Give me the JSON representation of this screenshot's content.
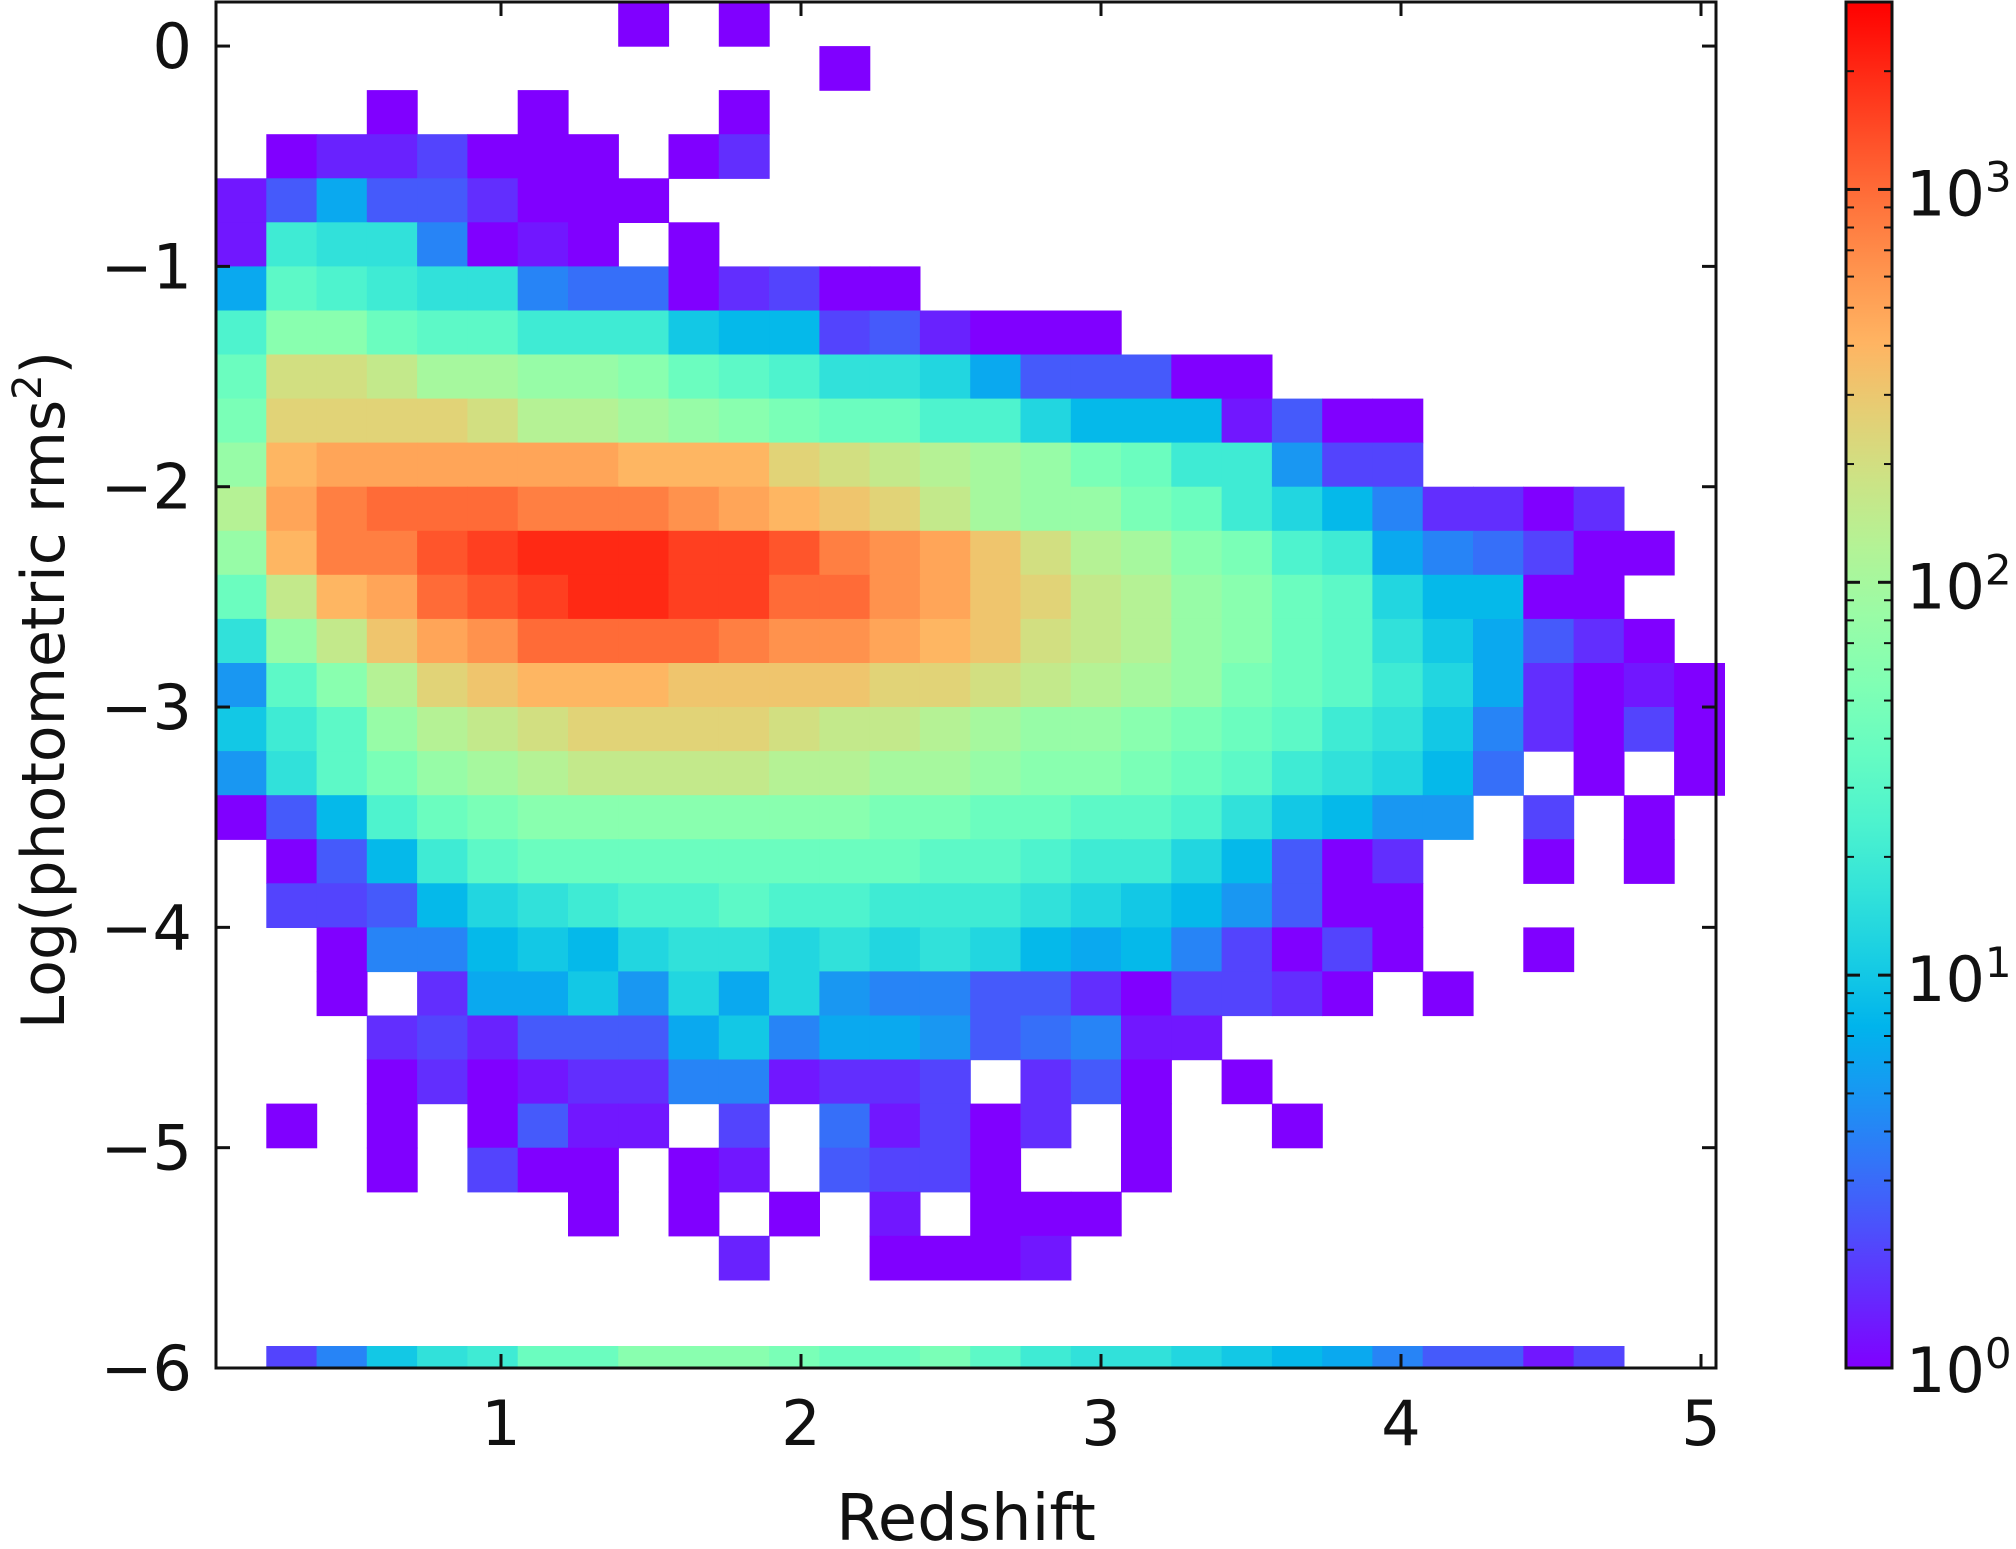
{
  "chart_data": {
    "type": "heatmap",
    "title": "",
    "xlabel": "Redshift",
    "ylabel": "Log(photometric rms",
    "ylabel_superscript": "2",
    "ylabel_close": ")",
    "xlim": [
      0.05,
      5.05
    ],
    "ylim": [
      -6,
      0.2
    ],
    "xticks": [
      1,
      2,
      3,
      4,
      5
    ],
    "yticks": [
      0,
      -1,
      -2,
      -3,
      -4,
      -5,
      -6
    ],
    "xtick_labels": [
      "1",
      "2",
      "3",
      "4",
      "5"
    ],
    "ytick_labels": [
      "0",
      "−1",
      "−2",
      "−3",
      "−4",
      "−5",
      "−6"
    ],
    "colorbar": {
      "scale": "log",
      "range": [
        1,
        3000
      ],
      "colormap": "rainbow",
      "label": "",
      "tick_base": "10",
      "tick_exponents": [
        "0",
        "1",
        "2",
        "3"
      ]
    },
    "grid": false,
    "legend": "none",
    "bin_layout": {
      "x_start": 0.05,
      "x_bin_width": 0.1676,
      "y_start": 0.2,
      "y_bin_height": -0.2,
      "value_encoding": "log10(count) per bin; null = empty bin"
    },
    "rows": [
      [
        null,
        null,
        null,
        null,
        null,
        null,
        null,
        null,
        0,
        null,
        0,
        null,
        null,
        null,
        null,
        null,
        null,
        null,
        null,
        null,
        null,
        null,
        null,
        null,
        null,
        null,
        null,
        null,
        null,
        null
      ],
      [
        null,
        null,
        null,
        null,
        null,
        null,
        null,
        null,
        null,
        null,
        null,
        null,
        0,
        null,
        null,
        null,
        null,
        null,
        null,
        null,
        null,
        null,
        null,
        null,
        null,
        null,
        null,
        null,
        null,
        null
      ],
      [
        null,
        null,
        null,
        0,
        null,
        null,
        0,
        null,
        null,
        null,
        0,
        null,
        null,
        null,
        null,
        null,
        null,
        null,
        null,
        null,
        null,
        null,
        null,
        null,
        null,
        null,
        null,
        null,
        null,
        null
      ],
      [
        null,
        0,
        0.15,
        0.15,
        0.3,
        0,
        0,
        0,
        null,
        0,
        0.2,
        null,
        null,
        null,
        null,
        null,
        null,
        null,
        null,
        null,
        null,
        null,
        null,
        null,
        null,
        null,
        null,
        null,
        null,
        null
      ],
      [
        0.1,
        0.4,
        0.8,
        0.4,
        0.4,
        0.2,
        0,
        0,
        0,
        null,
        null,
        null,
        null,
        null,
        null,
        null,
        null,
        null,
        null,
        null,
        null,
        null,
        null,
        null,
        null,
        null,
        null,
        null,
        null,
        null
      ],
      [
        0.1,
        1.3,
        1.2,
        1.2,
        0.6,
        0,
        0.1,
        0,
        null,
        0,
        null,
        null,
        null,
        null,
        null,
        null,
        null,
        null,
        null,
        null,
        null,
        null,
        null,
        null,
        null,
        null,
        null,
        null,
        null,
        null
      ],
      [
        0.8,
        1.5,
        1.4,
        1.3,
        1.2,
        1.2,
        0.6,
        0.5,
        0.5,
        0,
        0.2,
        0.3,
        0,
        0,
        null,
        null,
        null,
        null,
        null,
        null,
        null,
        null,
        null,
        null,
        null,
        null,
        null,
        null,
        null,
        null
      ],
      [
        1.4,
        1.8,
        1.8,
        1.6,
        1.5,
        1.5,
        1.3,
        1.3,
        1.3,
        1.0,
        0.9,
        0.9,
        0.3,
        0.4,
        0.15,
        0,
        0,
        0,
        null,
        null,
        null,
        null,
        null,
        null,
        null,
        null,
        null,
        null,
        null,
        null
      ],
      [
        1.6,
        2.3,
        2.3,
        2.2,
        2.0,
        2.0,
        1.9,
        1.9,
        1.8,
        1.6,
        1.5,
        1.4,
        1.2,
        1.2,
        1.1,
        0.8,
        0.4,
        0.4,
        0.4,
        0,
        0,
        null,
        null,
        null,
        null,
        null,
        null,
        null,
        null,
        null
      ],
      [
        1.7,
        2.4,
        2.4,
        2.4,
        2.4,
        2.3,
        2.1,
        2.1,
        2.0,
        1.9,
        1.8,
        1.7,
        1.6,
        1.6,
        1.4,
        1.4,
        1.1,
        0.9,
        0.9,
        0.9,
        0.1,
        0.4,
        0,
        0,
        null,
        null,
        null,
        null,
        null,
        null
      ],
      [
        1.9,
        2.6,
        2.7,
        2.7,
        2.7,
        2.7,
        2.7,
        2.7,
        2.6,
        2.6,
        2.6,
        2.4,
        2.3,
        2.2,
        2.1,
        2.0,
        1.9,
        1.7,
        1.6,
        1.3,
        1.3,
        0.7,
        0.3,
        0.3,
        null,
        null,
        null,
        null,
        null,
        null
      ],
      [
        2.1,
        2.7,
        2.9,
        3.0,
        3.0,
        3.0,
        2.9,
        2.9,
        2.9,
        2.8,
        2.7,
        2.6,
        2.5,
        2.4,
        2.2,
        2.0,
        1.9,
        1.9,
        1.7,
        1.6,
        1.3,
        1.1,
        0.9,
        0.6,
        0.2,
        0.2,
        0,
        0.2,
        null,
        null
      ],
      [
        1.9,
        2.6,
        2.9,
        2.9,
        3.1,
        3.2,
        3.3,
        3.3,
        3.3,
        3.2,
        3.2,
        3.1,
        2.9,
        2.8,
        2.7,
        2.5,
        2.3,
        2.1,
        2.0,
        1.8,
        1.7,
        1.4,
        1.3,
        0.8,
        0.6,
        0.5,
        0.3,
        0,
        0,
        null
      ],
      [
        1.6,
        2.2,
        2.6,
        2.7,
        3.0,
        3.1,
        3.2,
        3.3,
        3.3,
        3.2,
        3.2,
        3.0,
        3.0,
        2.8,
        2.7,
        2.5,
        2.4,
        2.2,
        2.1,
        1.9,
        1.8,
        1.6,
        1.5,
        1.1,
        0.9,
        0.9,
        0,
        0,
        null,
        null
      ],
      [
        1.2,
        1.9,
        2.2,
        2.5,
        2.7,
        2.8,
        3.0,
        3.0,
        3.0,
        3.0,
        2.9,
        2.8,
        2.8,
        2.7,
        2.6,
        2.5,
        2.3,
        2.2,
        2.1,
        1.9,
        1.8,
        1.6,
        1.5,
        1.2,
        1.0,
        0.8,
        0.4,
        0.2,
        0,
        null
      ],
      [
        0.7,
        1.5,
        1.8,
        2.1,
        2.4,
        2.5,
        2.6,
        2.6,
        2.6,
        2.5,
        2.5,
        2.5,
        2.5,
        2.4,
        2.4,
        2.3,
        2.2,
        2.1,
        2.0,
        1.9,
        1.7,
        1.6,
        1.5,
        1.3,
        1.1,
        0.8,
        0.2,
        0,
        0.1,
        0
      ],
      [
        1.0,
        1.3,
        1.5,
        1.9,
        2.1,
        2.2,
        2.3,
        2.4,
        2.4,
        2.4,
        2.4,
        2.3,
        2.2,
        2.2,
        2.1,
        2.0,
        1.9,
        1.9,
        1.8,
        1.7,
        1.6,
        1.5,
        1.3,
        1.2,
        1.0,
        0.6,
        0.2,
        0,
        0.3,
        0
      ],
      [
        0.7,
        1.2,
        1.5,
        1.7,
        1.9,
        2.0,
        2.1,
        2.2,
        2.2,
        2.2,
        2.2,
        2.1,
        2.1,
        2.0,
        2.0,
        1.9,
        1.8,
        1.8,
        1.7,
        1.6,
        1.5,
        1.3,
        1.2,
        1.1,
        0.9,
        0.5,
        null,
        0,
        null,
        0
      ],
      [
        0,
        0.4,
        0.9,
        1.4,
        1.6,
        1.7,
        1.8,
        1.8,
        1.8,
        1.8,
        1.8,
        1.8,
        1.8,
        1.7,
        1.7,
        1.6,
        1.6,
        1.5,
        1.5,
        1.4,
        1.2,
        1.0,
        0.9,
        0.7,
        0.7,
        null,
        0.3,
        null,
        0,
        null
      ],
      [
        null,
        0,
        0.4,
        0.9,
        1.3,
        1.5,
        1.6,
        1.6,
        1.6,
        1.6,
        1.6,
        1.6,
        1.6,
        1.6,
        1.5,
        1.5,
        1.4,
        1.3,
        1.3,
        1.1,
        0.9,
        0.4,
        0,
        0.2,
        null,
        null,
        0,
        null,
        0,
        null
      ],
      [
        null,
        0.3,
        0.3,
        0.4,
        0.9,
        1.1,
        1.2,
        1.3,
        1.4,
        1.4,
        1.5,
        1.4,
        1.4,
        1.3,
        1.3,
        1.3,
        1.2,
        1.1,
        1.0,
        0.9,
        0.7,
        0.4,
        0,
        0,
        null,
        null,
        null,
        null,
        null,
        null
      ],
      [
        null,
        null,
        0,
        0.6,
        0.6,
        0.9,
        1.0,
        0.9,
        1.1,
        1.2,
        1.2,
        1.1,
        1.2,
        1.1,
        1.2,
        1.1,
        0.9,
        0.8,
        0.9,
        0.6,
        0.3,
        0,
        0.3,
        0,
        null,
        null,
        0,
        null,
        null,
        null
      ],
      [
        null,
        null,
        0,
        null,
        0.2,
        0.8,
        0.8,
        1.0,
        0.7,
        1.1,
        0.8,
        1.1,
        0.7,
        0.6,
        0.6,
        0.4,
        0.4,
        0.2,
        0,
        0.3,
        0.3,
        0.2,
        0,
        null,
        0,
        null,
        null,
        null,
        null,
        null
      ],
      [
        null,
        null,
        null,
        0.2,
        0.3,
        0.15,
        0.4,
        0.4,
        0.4,
        0.8,
        1.0,
        0.6,
        0.8,
        0.8,
        0.7,
        0.4,
        0.5,
        0.6,
        0.1,
        0.1,
        null,
        null,
        null,
        null,
        null,
        null,
        null,
        null,
        null,
        null
      ],
      [
        null,
        null,
        null,
        0,
        0.2,
        0,
        0.1,
        0.2,
        0.2,
        0.6,
        0.6,
        0.1,
        0.2,
        0.2,
        0.3,
        null,
        0.2,
        0.4,
        0,
        null,
        0,
        null,
        null,
        null,
        null,
        null,
        null,
        null,
        null,
        null
      ],
      [
        null,
        0,
        null,
        0,
        null,
        0,
        0.4,
        0.1,
        0.1,
        null,
        0.3,
        null,
        0.5,
        0.1,
        0.3,
        0,
        0.2,
        null,
        0,
        null,
        null,
        0,
        null,
        null,
        null,
        null,
        null,
        null,
        null,
        null
      ],
      [
        null,
        null,
        null,
        0,
        null,
        0.3,
        0,
        0,
        null,
        0,
        0.1,
        null,
        0.4,
        0.3,
        0.3,
        0,
        null,
        null,
        0,
        null,
        null,
        null,
        null,
        null,
        null,
        null,
        null,
        null,
        null,
        null
      ],
      [
        null,
        null,
        null,
        null,
        null,
        null,
        null,
        0,
        null,
        0,
        null,
        0,
        null,
        0.1,
        null,
        0,
        0,
        0,
        null,
        null,
        null,
        null,
        null,
        null,
        null,
        null,
        null,
        null,
        null,
        null
      ],
      [
        null,
        null,
        null,
        null,
        null,
        null,
        null,
        null,
        null,
        null,
        0.15,
        null,
        null,
        0,
        0,
        0,
        0.1,
        null,
        null,
        null,
        null,
        null,
        null,
        null,
        null,
        null,
        null,
        null,
        null,
        null
      ],
      [
        null,
        0.3,
        0.6,
        1.0,
        1.2,
        1.3,
        1.6,
        1.6,
        1.8,
        1.8,
        1.8,
        1.7,
        1.6,
        1.6,
        1.7,
        1.5,
        1.3,
        1.2,
        1.2,
        1.1,
        1.0,
        0.9,
        0.8,
        0.6,
        0.4,
        0.4,
        0.1,
        0.3,
        null,
        null
      ]
    ]
  }
}
